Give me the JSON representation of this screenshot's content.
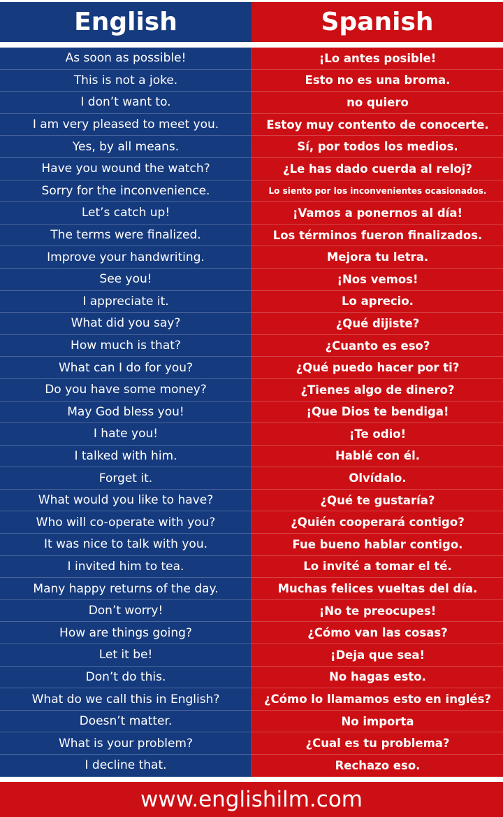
{
  "header": {
    "english": "English",
    "spanish": "Spanish"
  },
  "colors": {
    "english_bg": "#163a7e",
    "spanish_bg": "#cc0f14",
    "text": "#ffffff"
  },
  "rows": [
    {
      "en": "As soon as possible!",
      "es": "¡Lo antes posible!"
    },
    {
      "en": "This is not a joke.",
      "es": "Esto no es una broma."
    },
    {
      "en": "I don’t want to.",
      "es": "no quiero"
    },
    {
      "en": "I am very pleased to meet you.",
      "es": "Estoy muy contento de conocerte."
    },
    {
      "en": "Yes, by all means.",
      "es": "Sí, por todos los medios."
    },
    {
      "en": "Have you wound the watch?",
      "es": "¿Le has dado cuerda al reloj?"
    },
    {
      "en": "Sorry for the inconvenience.",
      "es": "Lo siento por los inconvenientes ocasionados."
    },
    {
      "en": "Let’s catch up!",
      "es": "¡Vamos a ponernos al día!"
    },
    {
      "en": "The terms were finalized.",
      "es": "Los términos fueron finalizados."
    },
    {
      "en": "Improve your handwriting.",
      "es": "Mejora tu letra."
    },
    {
      "en": "See you!",
      "es": "¡Nos vemos!"
    },
    {
      "en": "I appreciate it.",
      "es": "Lo aprecio."
    },
    {
      "en": "What did you say?",
      "es": "¿Qué dijiste?"
    },
    {
      "en": "How much is that?",
      "es": "¿Cuanto es eso?"
    },
    {
      "en": "What can I do for you?",
      "es": "¿Qué puedo hacer por ti?"
    },
    {
      "en": "Do you have some money?",
      "es": "¿Tienes algo de dinero?"
    },
    {
      "en": "May God bless you!",
      "es": "¡Que Dios te bendiga!"
    },
    {
      "en": "I hate you!",
      "es": "¡Te odio!"
    },
    {
      "en": "I talked with him.",
      "es": "Hablé con él."
    },
    {
      "en": "Forget it.",
      "es": "Olvídalo."
    },
    {
      "en": "What would you like to have?",
      "es": "¿Qué te gustaría?"
    },
    {
      "en": "Who will co-operate with you?",
      "es": "¿Quién cooperará contigo?"
    },
    {
      "en": "It was nice to talk with you.",
      "es": "Fue bueno hablar contigo."
    },
    {
      "en": "I invited him to tea.",
      "es": "Lo invité a tomar el té."
    },
    {
      "en": "Many happy returns of the day.",
      "es": "Muchas felices vueltas del día."
    },
    {
      "en": "Don’t worry!",
      "es": "¡No te preocupes!"
    },
    {
      "en": "How are things going?",
      "es": "¿Cómo van las cosas?"
    },
    {
      "en": "Let it be!",
      "es": "¡Deja que sea!"
    },
    {
      "en": "Don’t do this.",
      "es": "No hagas esto."
    },
    {
      "en": "What do we call this in English?",
      "es": "¿Cómo lo llamamos esto en inglés?"
    },
    {
      "en": "Doesn’t matter.",
      "es": "No importa"
    },
    {
      "en": "What is your problem?",
      "es": "¿Cual es tu problema?"
    },
    {
      "en": "I decline that.",
      "es": "Rechazo eso."
    }
  ],
  "footer": {
    "website": "www.englishilm.com"
  }
}
